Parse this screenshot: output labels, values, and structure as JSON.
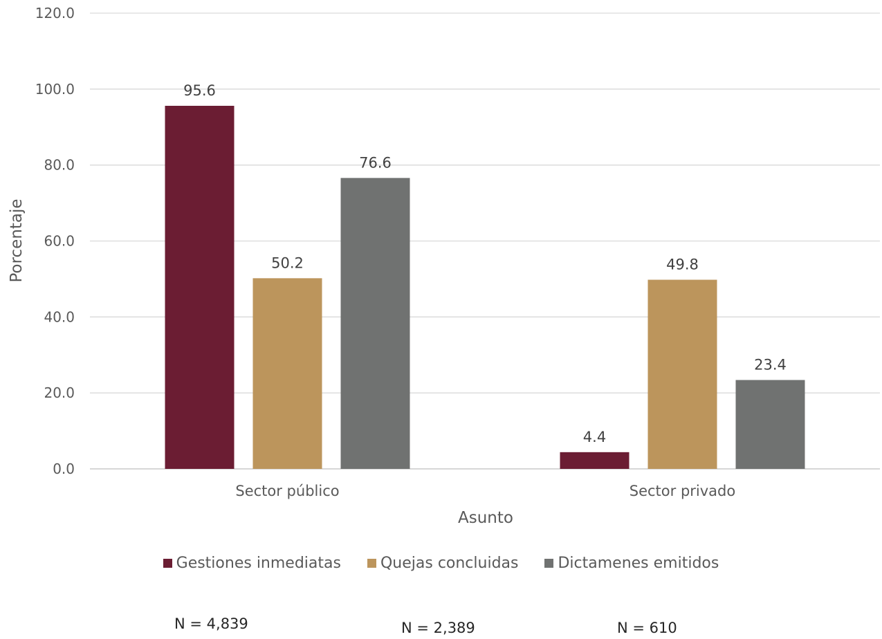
{
  "chart_data": {
    "type": "bar",
    "categories": [
      "Sector público",
      "Sector privado"
    ],
    "series": [
      {
        "name": "Gestiones inmediatas",
        "values": [
          95.6,
          4.4
        ],
        "color": "#6B1D33"
      },
      {
        "name": "Quejas concluidas",
        "values": [
          50.2,
          49.8
        ],
        "color": "#BC955C"
      },
      {
        "name": "Dictamenes emitidos",
        "values": [
          76.6,
          23.4
        ],
        "color": "#707271"
      }
    ],
    "xlabel": "Asunto",
    "ylabel": "Porcentaje",
    "ylim": [
      0,
      120
    ],
    "yticks": [
      "0.0",
      "20.0",
      "40.0",
      "60.0",
      "80.0",
      "100.0",
      "120.0"
    ],
    "grid": true,
    "legend_position": "bottom"
  },
  "notes": {
    "n_labels": [
      "N = 4,839",
      "N = 2,389",
      "N = 610"
    ]
  }
}
